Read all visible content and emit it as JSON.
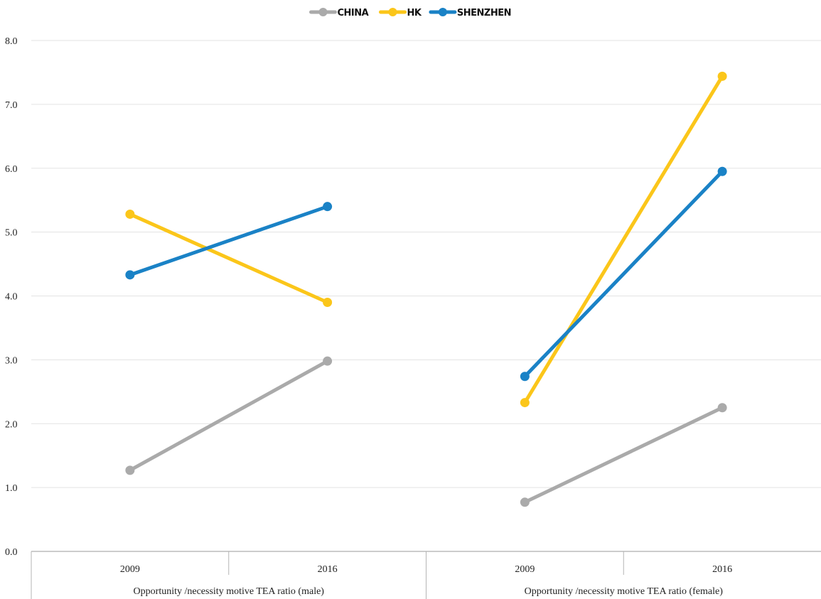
{
  "chart_data": {
    "type": "line",
    "legend": {
      "position": "top"
    },
    "series": [
      {
        "name": "CHINA",
        "color": "#aaaaaa"
      },
      {
        "name": "HK",
        "color": "#fbc61a"
      },
      {
        "name": "SHENZHEN",
        "color": "#1a82c6"
      }
    ],
    "y_axis": {
      "min": 0,
      "max": 8,
      "ticks": [
        "0.0",
        "1.0",
        "2.0",
        "3.0",
        "4.0",
        "5.0",
        "6.0",
        "7.0",
        "8.0"
      ],
      "gridlines": true
    },
    "groups": [
      {
        "label": "Opportunity /necessity motive TEA ratio (male)",
        "categories": [
          "2009",
          "2016"
        ],
        "values": {
          "CHINA": [
            1.27,
            2.98
          ],
          "HK": [
            5.28,
            3.9
          ],
          "SHENZHEN": [
            4.33,
            5.4
          ]
        }
      },
      {
        "label": "Opportunity /necessity motive TEA ratio (female)",
        "categories": [
          "2009",
          "2016"
        ],
        "values": {
          "CHINA": [
            0.77,
            2.25
          ],
          "HK": [
            2.33,
            7.44
          ],
          "SHENZHEN": [
            2.74,
            5.95
          ]
        }
      }
    ]
  }
}
